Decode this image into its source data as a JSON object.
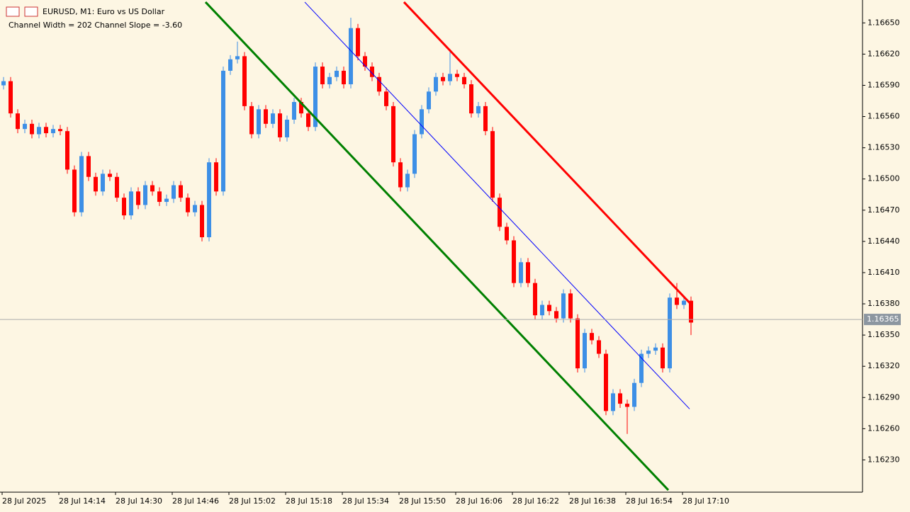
{
  "chart_data": {
    "type": "candlestick",
    "title": "EURUSD, M1:  Euro vs US Dollar",
    "subtitle": "Channel Width = 202 Channel Slope = -3.60",
    "up_color": "#3d8fe6",
    "down_color": "#ff0000",
    "xlim": [
      -0.5,
      121.2
    ],
    "ylim": [
      1.16199,
      1.16672
    ],
    "xticks": [
      {
        "value": -0.2,
        "label": "28 Jul 2025"
      },
      {
        "value": 7.8,
        "label": "28 Jul 14:14"
      },
      {
        "value": 15.8,
        "label": "28 Jul 14:30"
      },
      {
        "value": 23.8,
        "label": "28 Jul 14:46"
      },
      {
        "value": 31.8,
        "label": "28 Jul 15:02"
      },
      {
        "value": 39.8,
        "label": "28 Jul 15:18"
      },
      {
        "value": 47.8,
        "label": "28 Jul 15:34"
      },
      {
        "value": 55.8,
        "label": "28 Jul 15:50"
      },
      {
        "value": 63.8,
        "label": "28 Jul 16:06"
      },
      {
        "value": 71.8,
        "label": "28 Jul 16:22"
      },
      {
        "value": 79.8,
        "label": "28 Jul 16:38"
      },
      {
        "value": 87.8,
        "label": "28 Jul 16:54"
      },
      {
        "value": 95.8,
        "label": "28 Jul 17:10"
      }
    ],
    "yticks": [
      {
        "value": 1.1665,
        "label": "1.16650"
      },
      {
        "value": 1.1662,
        "label": "1.16620"
      },
      {
        "value": 1.1659,
        "label": "1.16590"
      },
      {
        "value": 1.1656,
        "label": "1.16560"
      },
      {
        "value": 1.1653,
        "label": "1.16530"
      },
      {
        "value": 1.165,
        "label": "1.16500"
      },
      {
        "value": 1.1647,
        "label": "1.16470"
      },
      {
        "value": 1.1644,
        "label": "1.16440"
      },
      {
        "value": 1.1641,
        "label": "1.16410"
      },
      {
        "value": 1.1638,
        "label": "1.16380"
      },
      {
        "value": 1.1635,
        "label": "1.16350"
      },
      {
        "value": 1.1632,
        "label": "1.16320"
      },
      {
        "value": 1.1629,
        "label": "1.16290"
      },
      {
        "value": 1.1626,
        "label": "1.16260"
      },
      {
        "value": 1.1623,
        "label": "1.16230"
      }
    ],
    "current_price": {
      "value": 1.16365,
      "label": "1.16365"
    },
    "open": [
      1.1659,
      1.16594,
      1.16563,
      1.16548,
      1.16553,
      1.16543,
      1.1655,
      1.16544,
      1.16548,
      1.16546,
      1.16509,
      1.16468,
      1.16522,
      1.16502,
      1.16488,
      1.16505,
      1.16502,
      1.16482,
      1.16465,
      1.16488,
      1.16475,
      1.16494,
      1.16488,
      1.16478,
      1.16481,
      1.16494,
      1.16482,
      1.16468,
      1.16475,
      1.16444,
      1.16516,
      1.16488,
      1.16604,
      1.16615,
      1.16618,
      1.1657,
      1.16543,
      1.16567,
      1.16553,
      1.16563,
      1.1654,
      1.16557,
      1.16574,
      1.16563,
      1.1655,
      1.16608,
      1.16591,
      1.16598,
      1.16604,
      1.16591,
      1.16645,
      1.16618,
      1.16608,
      1.16598,
      1.16584,
      1.1657,
      1.16516,
      1.16492,
      1.16505,
      1.16543,
      1.16567,
      1.16584,
      1.16598,
      1.16594,
      1.16601,
      1.16598,
      1.16591,
      1.16563,
      1.1657,
      1.16546,
      1.16482,
      1.16454,
      1.16441,
      1.164,
      1.1642,
      1.164,
      1.16369,
      1.16379,
      1.16373,
      1.16366,
      1.1639,
      1.16366,
      1.16318,
      1.16352,
      1.16345,
      1.16332,
      1.16277,
      1.16294,
      1.16284,
      1.16281,
      1.16304,
      1.16332,
      1.16335,
      1.16338,
      1.16318,
      1.16386,
      1.16379,
      1.16383
    ],
    "high": [
      1.16598,
      1.16598,
      1.16567,
      1.16557,
      1.16557,
      1.16554,
      1.16554,
      1.16552,
      1.16552,
      1.1655,
      1.16513,
      1.16526,
      1.16526,
      1.16506,
      1.16509,
      1.16509,
      1.16506,
      1.16486,
      1.16492,
      1.16492,
      1.16498,
      1.16498,
      1.16492,
      1.16485,
      1.16498,
      1.16498,
      1.16486,
      1.16479,
      1.16479,
      1.1652,
      1.1652,
      1.16608,
      1.16619,
      1.16632,
      1.16622,
      1.16574,
      1.16571,
      1.16571,
      1.16567,
      1.16567,
      1.16561,
      1.16578,
      1.16578,
      1.16567,
      1.16612,
      1.16612,
      1.16602,
      1.16608,
      1.16608,
      1.16655,
      1.16649,
      1.16622,
      1.16612,
      1.16602,
      1.16588,
      1.16574,
      1.1652,
      1.16509,
      1.16547,
      1.16571,
      1.16588,
      1.16602,
      1.16602,
      1.16622,
      1.16605,
      1.16602,
      1.16595,
      1.16574,
      1.16574,
      1.1655,
      1.16486,
      1.16458,
      1.16445,
      1.16424,
      1.16424,
      1.16404,
      1.16383,
      1.16383,
      1.16377,
      1.16394,
      1.16394,
      1.1637,
      1.16356,
      1.16356,
      1.16349,
      1.16336,
      1.16298,
      1.16298,
      1.16288,
      1.16308,
      1.16336,
      1.16339,
      1.16342,
      1.16342,
      1.1639,
      1.164,
      1.16387,
      1.16387
    ],
    "low": [
      1.16586,
      1.16559,
      1.16544,
      1.16544,
      1.16539,
      1.16539,
      1.1654,
      1.1654,
      1.16542,
      1.16505,
      1.16464,
      1.16464,
      1.16498,
      1.16484,
      1.16484,
      1.16498,
      1.16478,
      1.16461,
      1.16461,
      1.16471,
      1.16471,
      1.16484,
      1.16474,
      1.16474,
      1.16477,
      1.16478,
      1.16464,
      1.16464,
      1.1644,
      1.1644,
      1.16484,
      1.16484,
      1.166,
      1.16611,
      1.16566,
      1.16539,
      1.16539,
      1.16549,
      1.16549,
      1.16536,
      1.16536,
      1.16553,
      1.16559,
      1.16546,
      1.16546,
      1.16587,
      1.16587,
      1.16594,
      1.16587,
      1.16587,
      1.16614,
      1.16604,
      1.16594,
      1.1658,
      1.16566,
      1.16512,
      1.16488,
      1.16488,
      1.16501,
      1.16539,
      1.16563,
      1.1658,
      1.1659,
      1.1659,
      1.16594,
      1.16587,
      1.16559,
      1.16559,
      1.16542,
      1.16478,
      1.1645,
      1.16437,
      1.16396,
      1.16396,
      1.16396,
      1.16365,
      1.16365,
      1.16369,
      1.16362,
      1.16362,
      1.16362,
      1.16314,
      1.16314,
      1.16341,
      1.16328,
      1.16273,
      1.16273,
      1.1628,
      1.16255,
      1.16277,
      1.163,
      1.16328,
      1.16331,
      1.16314,
      1.16314,
      1.16375,
      1.16375,
      1.1635
    ],
    "close": [
      1.16594,
      1.16563,
      1.16548,
      1.16553,
      1.16543,
      1.1655,
      1.16544,
      1.16548,
      1.16546,
      1.16509,
      1.16468,
      1.16522,
      1.16502,
      1.16488,
      1.16505,
      1.16502,
      1.16482,
      1.16465,
      1.16488,
      1.16475,
      1.16494,
      1.16488,
      1.16478,
      1.16481,
      1.16494,
      1.16482,
      1.16468,
      1.16475,
      1.16444,
      1.16516,
      1.16488,
      1.16604,
      1.16615,
      1.16618,
      1.1657,
      1.16543,
      1.16567,
      1.16553,
      1.16563,
      1.1654,
      1.16557,
      1.16574,
      1.16563,
      1.1655,
      1.16608,
      1.16591,
      1.16598,
      1.16604,
      1.16591,
      1.16645,
      1.16618,
      1.16608,
      1.16598,
      1.16584,
      1.1657,
      1.16516,
      1.16492,
      1.16505,
      1.16543,
      1.16567,
      1.16584,
      1.16598,
      1.16594,
      1.16601,
      1.16598,
      1.16591,
      1.16563,
      1.1657,
      1.16546,
      1.16482,
      1.16454,
      1.16441,
      1.164,
      1.1642,
      1.164,
      1.16369,
      1.16379,
      1.16373,
      1.16366,
      1.1639,
      1.16366,
      1.16318,
      1.16352,
      1.16345,
      1.16332,
      1.16277,
      1.16294,
      1.16284,
      1.16281,
      1.16304,
      1.16332,
      1.16335,
      1.16338,
      1.16318,
      1.16386,
      1.16379,
      1.16383,
      1.16362
    ],
    "channels": [
      {
        "color": "#ff0000",
        "width": 3,
        "x": [
          56.5,
          96.8
        ],
        "values": [
          1.1667,
          1.16381
        ]
      },
      {
        "color": "#0000ff",
        "width": 1,
        "x": [
          42.5,
          96.8
        ],
        "values": [
          1.1667,
          1.16279
        ]
      },
      {
        "color": "#008000",
        "width": 3,
        "x": [
          28.5,
          93.8
        ],
        "values": [
          1.1667,
          1.16201
        ]
      }
    ]
  }
}
